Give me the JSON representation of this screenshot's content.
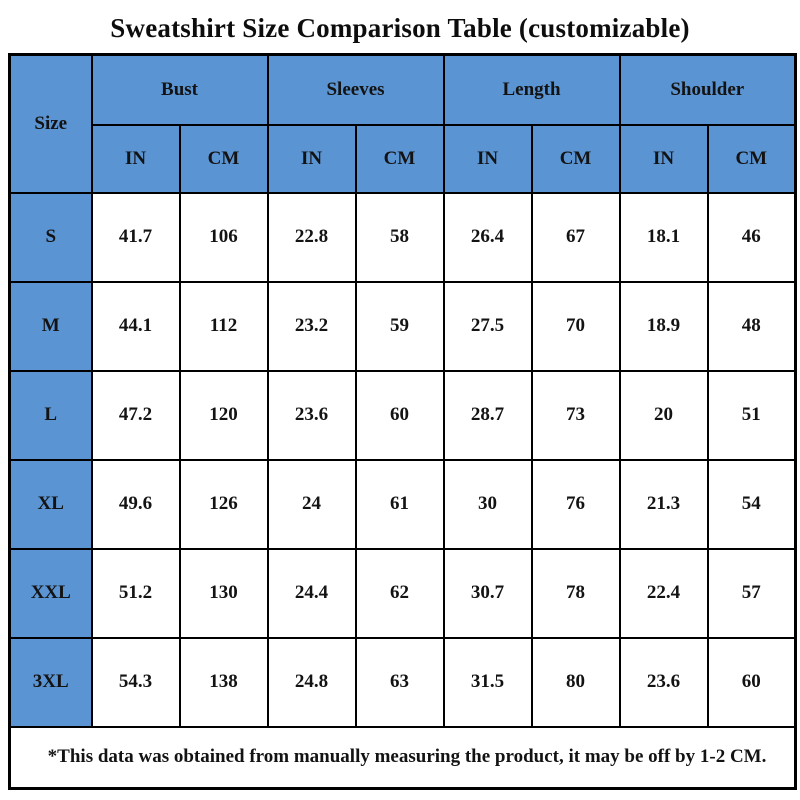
{
  "title": "Sweatshirt Size Comparison Table (customizable)",
  "colors": {
    "header_blue": "#5B94D2",
    "border": "#000000",
    "text": "#131313"
  },
  "table": {
    "size_header": "Size",
    "groups": [
      {
        "label": "Bust"
      },
      {
        "label": "Sleeves"
      },
      {
        "label": "Length"
      },
      {
        "label": "Shoulder"
      }
    ],
    "unit_headers": [
      "IN",
      "CM",
      "IN",
      "CM",
      "IN",
      "CM",
      "IN",
      "CM"
    ],
    "rows": [
      {
        "size": "S",
        "values": [
          "41.7",
          "106",
          "22.8",
          "58",
          "26.4",
          "67",
          "18.1",
          "46"
        ]
      },
      {
        "size": "M",
        "values": [
          "44.1",
          "112",
          "23.2",
          "59",
          "27.5",
          "70",
          "18.9",
          "48"
        ]
      },
      {
        "size": "L",
        "values": [
          "47.2",
          "120",
          "23.6",
          "60",
          "28.7",
          "73",
          "20",
          "51"
        ]
      },
      {
        "size": "XL",
        "values": [
          "49.6",
          "126",
          "24",
          "61",
          "30",
          "76",
          "21.3",
          "54"
        ]
      },
      {
        "size": "XXL",
        "values": [
          "51.2",
          "130",
          "24.4",
          "62",
          "30.7",
          "78",
          "22.4",
          "57"
        ]
      },
      {
        "size": "3XL",
        "values": [
          "54.3",
          "138",
          "24.8",
          "63",
          "31.5",
          "80",
          "23.6",
          "60"
        ]
      }
    ],
    "footnote": "*This data was obtained from manually measuring the product, it may be off by 1-2 CM."
  },
  "chart_data": {
    "type": "table",
    "title": "Sweatshirt Size Comparison Table (customizable)",
    "columns": [
      "Size",
      "Bust IN",
      "Bust CM",
      "Sleeves IN",
      "Sleeves CM",
      "Length IN",
      "Length CM",
      "Shoulder IN",
      "Shoulder CM"
    ],
    "rows": [
      [
        "S",
        41.7,
        106,
        22.8,
        58,
        26.4,
        67,
        18.1,
        46
      ],
      [
        "M",
        44.1,
        112,
        23.2,
        59,
        27.5,
        70,
        18.9,
        48
      ],
      [
        "L",
        47.2,
        120,
        23.6,
        60,
        28.7,
        73,
        20,
        51
      ],
      [
        "XL",
        49.6,
        126,
        24,
        61,
        30,
        76,
        21.3,
        54
      ],
      [
        "XXL",
        51.2,
        130,
        24.4,
        62,
        30.7,
        78,
        22.4,
        57
      ],
      [
        "3XL",
        54.3,
        138,
        24.8,
        63,
        31.5,
        80,
        23.6,
        60
      ]
    ],
    "footnote": "*This data was obtained from manually measuring the product, it may be off by 1-2 CM."
  }
}
